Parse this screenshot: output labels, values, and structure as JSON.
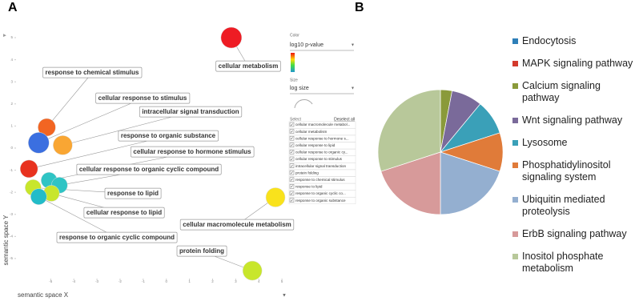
{
  "figure": {
    "panel_a": "A",
    "panel_b": "B"
  },
  "controls": {
    "color_title": "Color",
    "color_value": "log10 p-value",
    "size_title": "Size",
    "size_value": "log size",
    "select_title": "Select",
    "deselect": "Deselect all",
    "items": [
      "cellular macromolecule metabol...",
      "cellular metabolism",
      "cellular response to hormone s...",
      "cellular response to lipid",
      "cellular response to organic cy...",
      "cellular response to stimulus",
      "intracellular signal transduction",
      "protein folding",
      "response to chemical stimulus",
      "response to lipid",
      "response to organic cyclic co...",
      "response to organic substance"
    ]
  },
  "chart_data": [
    {
      "type": "scatter",
      "xlabel": "semantic space X",
      "ylabel": "semantic space Y",
      "labels": [
        "cellular metabolism",
        "response to chemical stimulus",
        "cellular response to stimulus",
        "intracellular signal transduction",
        "response to organic substance",
        "cellular response to hormone stimulus",
        "cellular response to organic cyclic compound",
        "response to lipid",
        "cellular response to lipid",
        "response to organic cyclic compound",
        "cellular macromolecule metabolism",
        "protein folding"
      ],
      "x": [
        2.81,
        -5.17,
        -5.52,
        -4.48,
        -5.94,
        -5.07,
        -4.62,
        -5.76,
        -4.97,
        -5.52,
        4.72,
        3.72
      ],
      "values": [
        5.0,
        0.94,
        0.24,
        0.13,
        -0.94,
        -1.46,
        -1.68,
        -1.79,
        -2.05,
        -2.2,
        -2.23,
        -5.55
      ],
      "colors": [
        "#ee1c24",
        "#f26522",
        "#3b6fe0",
        "#f9a633",
        "#e8321f",
        "#2fc4c4",
        "#2fc4c4",
        "#c8e62c",
        "#c8e62c",
        "#22bcc8",
        "#f9e21c",
        "#c8e62c"
      ],
      "xlim": [
        -6.5,
        5.1
      ],
      "ylim": [
        -5.8,
        5.4
      ],
      "xticks": [
        -5,
        -4,
        -3,
        -2,
        -1,
        0,
        1,
        2,
        3,
        4,
        5
      ],
      "yticks": [
        -5,
        -4,
        -3,
        -2,
        -1,
        0,
        1,
        2,
        3,
        4,
        5
      ]
    },
    {
      "type": "pie",
      "categories": [
        "Endocytosis",
        "MAPK signaling pathway",
        "Calcium signaling pathway",
        "Wnt signaling pathway",
        "Lysosome",
        "Phosphatidylinositol signaling system",
        "Ubiquitin mediated proteolysis",
        "ErbB signaling pathway",
        "Inositol phosphate metabolism"
      ],
      "values": [
        0,
        0,
        3,
        8,
        9,
        10,
        20,
        20,
        30
      ],
      "colors": [
        "#2e7fb8",
        "#d33a2c",
        "#8a9a3a",
        "#7a6a9a",
        "#3aa0b8",
        "#e07b39",
        "#94afd0",
        "#d79a9a",
        "#b8c89a"
      ]
    }
  ]
}
